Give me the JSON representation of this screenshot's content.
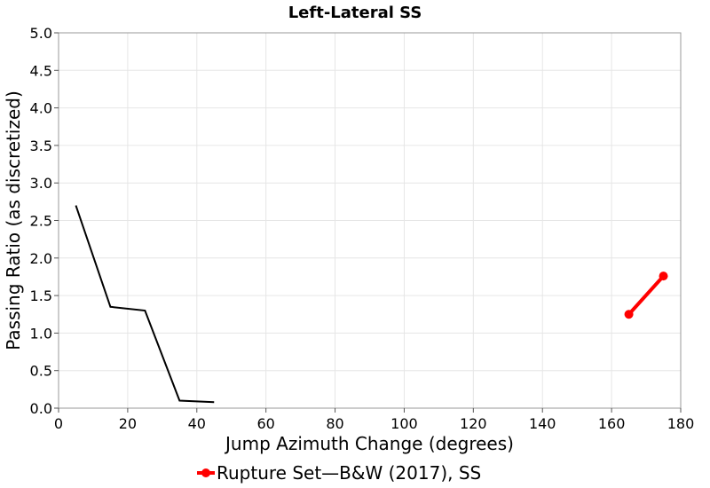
{
  "chart_data": {
    "type": "line",
    "title": "Left-Lateral SS",
    "xlabel": "Jump Azimuth Change (degrees)",
    "ylabel": "Passing Ratio (as discretized)",
    "xlim": [
      0,
      180
    ],
    "ylim": [
      0,
      5.0
    ],
    "xticks": [
      0,
      20,
      40,
      60,
      80,
      100,
      120,
      140,
      160,
      180
    ],
    "yticks": [
      "0.0",
      "0.5",
      "1.0",
      "1.5",
      "2.0",
      "2.5",
      "3.0",
      "3.5",
      "4.0",
      "4.5",
      "5.0"
    ],
    "grid": true,
    "series": [
      {
        "name": "",
        "color": "#000000",
        "markers": false,
        "x": [
          5,
          15,
          25,
          35,
          45
        ],
        "y": [
          2.7,
          1.35,
          1.3,
          0.1,
          0.08
        ]
      },
      {
        "name": "Rupture Set—B&W (2017), SS",
        "color": "#ff0000",
        "markers": true,
        "x": [
          165,
          175
        ],
        "y": [
          1.25,
          1.76
        ]
      }
    ],
    "legend": {
      "position": "bottom-center",
      "label": "Rupture Set—B&W (2017), SS"
    }
  }
}
